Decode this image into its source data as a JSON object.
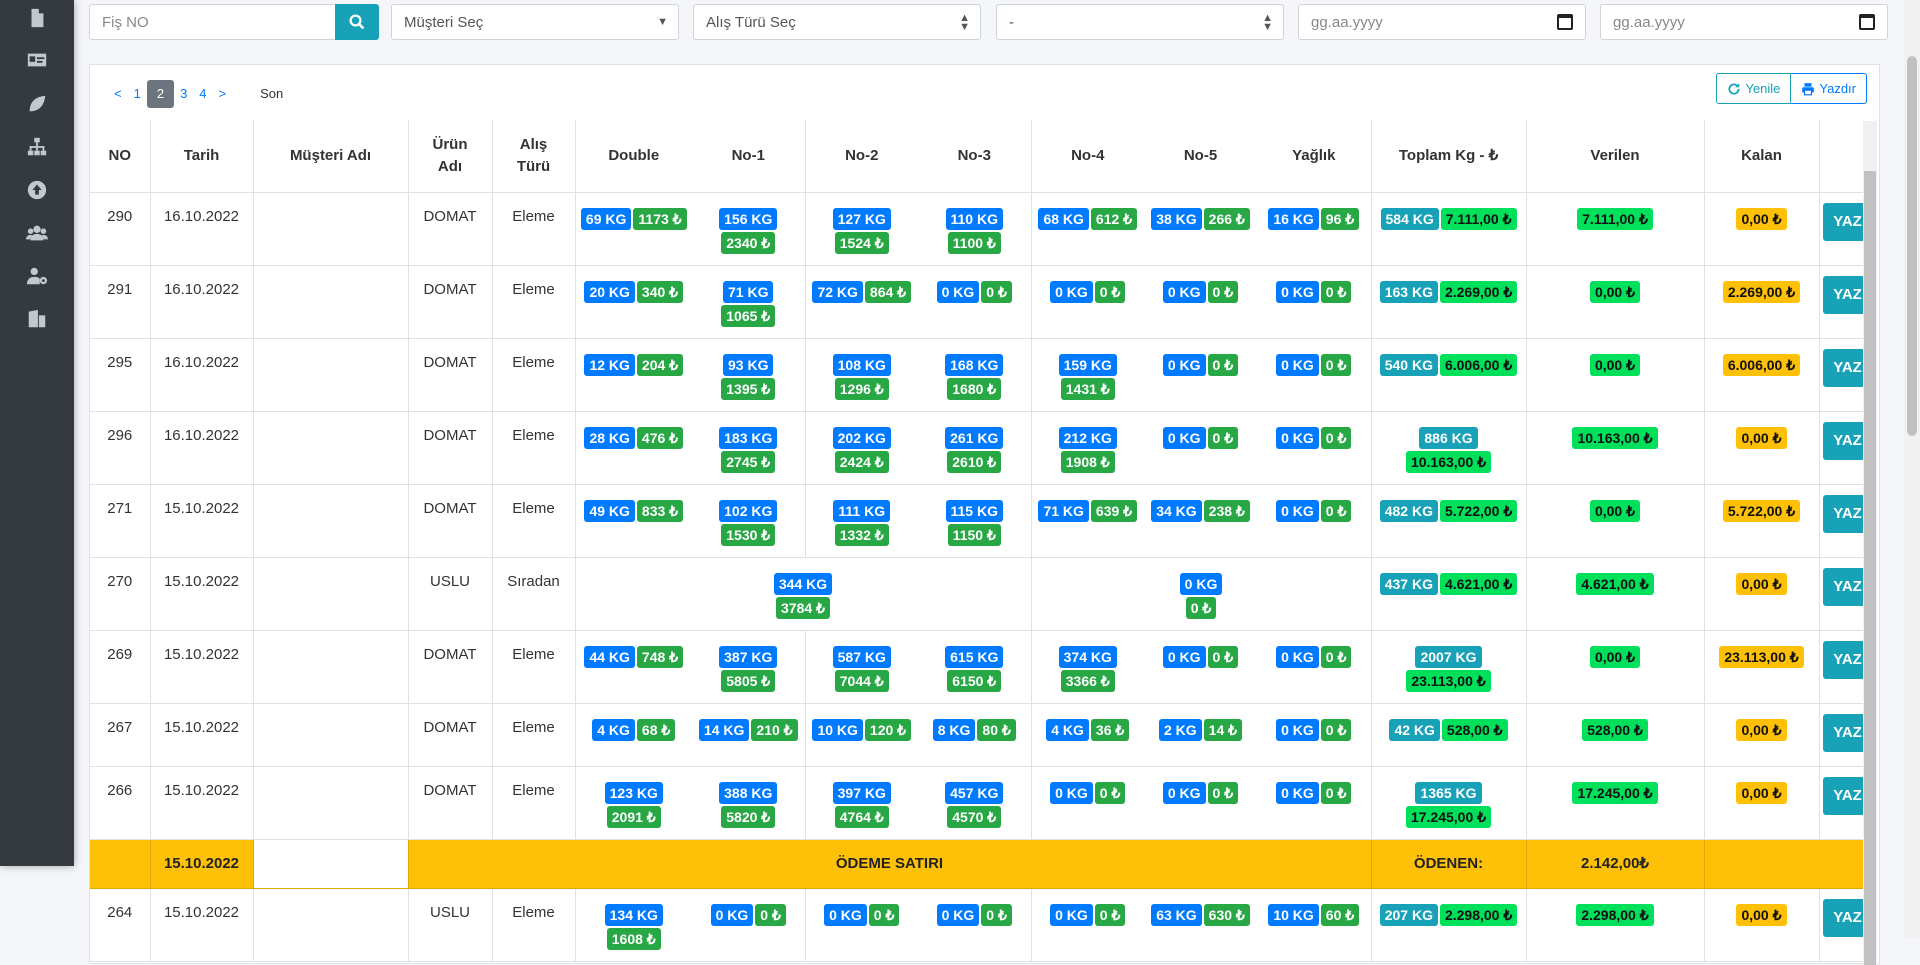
{
  "sidebar": {
    "icons": [
      "file-icon",
      "id-card-icon",
      "leaf-icon",
      "sitemap-icon",
      "upload-circle-icon",
      "users-icon",
      "user-cog-icon",
      "building-icon"
    ]
  },
  "filters": {
    "fis_no_placeholder": "Fiş NO",
    "musteri_select": "Müşteri Seç",
    "alis_turu_select": "Alış Türü Seç",
    "third_select": "-",
    "date_start_placeholder": "gg.aa.yyyy",
    "date_end_placeholder": "gg.aa.yyyy"
  },
  "pager": {
    "prev": "<",
    "pages": [
      "1",
      "2",
      "3",
      "4"
    ],
    "active": "2",
    "next": ">",
    "last": "Son"
  },
  "toolbar": {
    "refresh_label": "Yenile",
    "print_label": "Yazdır"
  },
  "colors": {
    "accent": "#17a2b8",
    "blue": "#007bff",
    "green": "#28a745",
    "lime": "#00e05a",
    "yellow": "#ffc107",
    "sidebar": "#343a40"
  },
  "table": {
    "headers": {
      "no": "NO",
      "tarih": "Tarih",
      "musteri": "Müşteri Adı",
      "urun": "Ürün Adı",
      "alis": "Alış Türü",
      "double": "Double",
      "no1": "No-1",
      "no2": "No-2",
      "no3": "No-3",
      "no4": "No-4",
      "no5": "No-5",
      "yaglik": "Yağlık",
      "toplam": "Toplam Kg - ₺",
      "verilen": "Verilen",
      "kalan": "Kalan"
    },
    "yaz_label": "YAZ",
    "rows": [
      {
        "no": "290",
        "tarih": "16.10.2022",
        "urun": "DOMAT",
        "alis": "Eleme",
        "double": [
          "69 KG",
          "1173 ₺"
        ],
        "no1": [
          "156 KG",
          "2340 ₺"
        ],
        "no2": [
          "127 KG",
          "1524 ₺"
        ],
        "no3": [
          "110 KG",
          "1100 ₺"
        ],
        "no4": [
          "68 KG",
          "612 ₺"
        ],
        "no5": [
          "38 KG",
          "266 ₺"
        ],
        "yaglik": [
          "16 KG",
          "96 ₺"
        ],
        "toplam": [
          "584 KG",
          "7.111,00 ₺"
        ],
        "verilen": "7.111,00 ₺",
        "kalan": "0,00 ₺"
      },
      {
        "no": "291",
        "tarih": "16.10.2022",
        "urun": "DOMAT",
        "alis": "Eleme",
        "double": [
          "20 KG",
          "340 ₺"
        ],
        "no1": [
          "71 KG",
          "1065 ₺"
        ],
        "no2": [
          "72 KG",
          "864 ₺"
        ],
        "no3": [
          "0 KG",
          "0 ₺"
        ],
        "no4": [
          "0 KG",
          "0 ₺"
        ],
        "no5": [
          "0 KG",
          "0 ₺"
        ],
        "yaglik": [
          "0 KG",
          "0 ₺"
        ],
        "toplam": [
          "163 KG",
          "2.269,00 ₺"
        ],
        "verilen": "0,00 ₺",
        "kalan": "2.269,00 ₺"
      },
      {
        "no": "295",
        "tarih": "16.10.2022",
        "urun": "DOMAT",
        "alis": "Eleme",
        "double": [
          "12 KG",
          "204 ₺"
        ],
        "no1": [
          "93 KG",
          "1395 ₺"
        ],
        "no2": [
          "108 KG",
          "1296 ₺"
        ],
        "no3": [
          "168 KG",
          "1680 ₺"
        ],
        "no4": [
          "159 KG",
          "1431 ₺"
        ],
        "no5": [
          "0 KG",
          "0 ₺"
        ],
        "yaglik": [
          "0 KG",
          "0 ₺"
        ],
        "toplam": [
          "540 KG",
          "6.006,00 ₺"
        ],
        "verilen": "0,00 ₺",
        "kalan": "6.006,00 ₺"
      },
      {
        "no": "296",
        "tarih": "16.10.2022",
        "urun": "DOMAT",
        "alis": "Eleme",
        "double": [
          "28 KG",
          "476 ₺"
        ],
        "no1": [
          "183 KG",
          "2745 ₺"
        ],
        "no2": [
          "202 KG",
          "2424 ₺"
        ],
        "no3": [
          "261 KG",
          "2610 ₺"
        ],
        "no4": [
          "212 KG",
          "1908 ₺"
        ],
        "no5": [
          "0 KG",
          "0 ₺"
        ],
        "yaglik": [
          "0 KG",
          "0 ₺"
        ],
        "toplam": [
          "886 KG",
          "10.163,00 ₺"
        ],
        "verilen": "10.163,00 ₺",
        "kalan": "0,00 ₺"
      },
      {
        "no": "271",
        "tarih": "15.10.2022",
        "urun": "DOMAT",
        "alis": "Eleme",
        "double": [
          "49 KG",
          "833 ₺"
        ],
        "no1": [
          "102 KG",
          "1530 ₺"
        ],
        "no2": [
          "111 KG",
          "1332 ₺"
        ],
        "no3": [
          "115 KG",
          "1150 ₺"
        ],
        "no4": [
          "71 KG",
          "639 ₺"
        ],
        "no5": [
          "34 KG",
          "238 ₺"
        ],
        "yaglik": [
          "0 KG",
          "0 ₺"
        ],
        "toplam": [
          "482 KG",
          "5.722,00 ₺"
        ],
        "verilen": "0,00 ₺",
        "kalan": "5.722,00 ₺"
      },
      {
        "no": "270",
        "tarih": "15.10.2022",
        "urun": "USLU",
        "alis": "Sıradan",
        "merged_left": [
          "344 KG",
          "3784 ₺"
        ],
        "merged_right": [
          "0 KG",
          "0 ₺"
        ],
        "toplam": [
          "437 KG",
          "4.621,00 ₺"
        ],
        "verilen": "4.621,00 ₺",
        "kalan": "0,00 ₺"
      },
      {
        "no": "269",
        "tarih": "15.10.2022",
        "urun": "DOMAT",
        "alis": "Eleme",
        "double": [
          "44 KG",
          "748 ₺"
        ],
        "no1": [
          "387 KG",
          "5805 ₺"
        ],
        "no2": [
          "587 KG",
          "7044 ₺"
        ],
        "no3": [
          "615 KG",
          "6150 ₺"
        ],
        "no4": [
          "374 KG",
          "3366 ₺"
        ],
        "no5": [
          "0 KG",
          "0 ₺"
        ],
        "yaglik": [
          "0 KG",
          "0 ₺"
        ],
        "toplam": [
          "2007 KG",
          "23.113,00 ₺"
        ],
        "verilen": "0,00 ₺",
        "kalan": "23.113,00 ₺"
      },
      {
        "no": "267",
        "tarih": "15.10.2022",
        "urun": "DOMAT",
        "alis": "Eleme",
        "double": [
          "4 KG",
          "68 ₺"
        ],
        "no1": [
          "14 KG",
          "210 ₺"
        ],
        "no2": [
          "10 KG",
          "120 ₺"
        ],
        "no3": [
          "8 KG",
          "80 ₺"
        ],
        "no4": [
          "4 KG",
          "36 ₺"
        ],
        "no5": [
          "2 KG",
          "14 ₺"
        ],
        "yaglik": [
          "0 KG",
          "0 ₺"
        ],
        "toplam": [
          "42 KG",
          "528,00 ₺"
        ],
        "verilen": "528,00 ₺",
        "kalan": "0,00 ₺"
      },
      {
        "no": "266",
        "tarih": "15.10.2022",
        "urun": "DOMAT",
        "alis": "Eleme",
        "double": [
          "123 KG",
          "2091 ₺"
        ],
        "no1": [
          "388 KG",
          "5820 ₺"
        ],
        "no2": [
          "397 KG",
          "4764 ₺"
        ],
        "no3": [
          "457 KG",
          "4570 ₺"
        ],
        "no4": [
          "0 KG",
          "0 ₺"
        ],
        "no5": [
          "0 KG",
          "0 ₺"
        ],
        "yaglik": [
          "0 KG",
          "0 ₺"
        ],
        "toplam": [
          "1365 KG",
          "17.245,00 ₺"
        ],
        "verilen": "17.245,00 ₺",
        "kalan": "0,00 ₺"
      }
    ],
    "payment_row": {
      "tarih": "15.10.2022",
      "label": "ÖDEME SATIRI",
      "odenen_label": "ÖDENEN:",
      "amount": "2.142,00₺"
    },
    "last_row": {
      "no": "264",
      "tarih": "15.10.2022",
      "urun": "USLU",
      "alis": "Eleme",
      "double": [
        "134 KG",
        "1608 ₺"
      ],
      "no1": [
        "0 KG",
        "0 ₺"
      ],
      "no2": [
        "0 KG",
        "0 ₺"
      ],
      "no3": [
        "0 KG",
        "0 ₺"
      ],
      "no4": [
        "0 KG",
        "0 ₺"
      ],
      "no5": [
        "63 KG",
        "630 ₺"
      ],
      "yaglik": [
        "10 KG",
        "60 ₺"
      ],
      "toplam": [
        "207 KG",
        "2.298,00 ₺"
      ],
      "verilen": "2.298,00 ₺",
      "kalan": "0,00 ₺"
    }
  }
}
